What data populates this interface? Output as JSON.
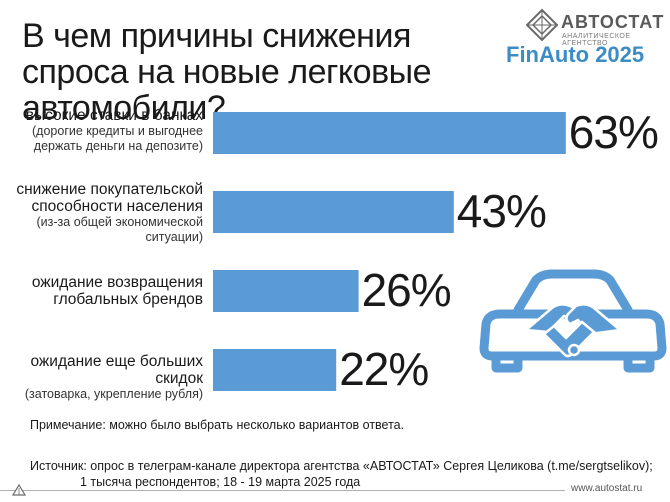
{
  "title": "В чем причины снижения спроса на новые легковые автомобили?",
  "brand": {
    "name": "АВТОСТАТ",
    "sub": "АНАЛИТИЧЕСКОЕ АГЕНТСТВО"
  },
  "event": "FinAuto 2025",
  "colors": {
    "bar": "#5b9bd5",
    "bar_edge": "#ffffff",
    "accent": "#3c8cc6",
    "car": "#5b9bd5"
  },
  "chart_data": {
    "type": "bar",
    "orientation": "horizontal",
    "value_unit": "%",
    "xlim": [
      0,
      100
    ],
    "grid": false,
    "categories": [
      {
        "label": "высокие ставки в банках",
        "note": "(дорогие кредиты и выгоднее держать деньги на депозите)"
      },
      {
        "label": "снижение покупательской способности населения",
        "note": "(из-за общей экономической ситуации)"
      },
      {
        "label": "ожидание возвращения глобальных брендов",
        "note": ""
      },
      {
        "label": "ожидание еще больших скидок",
        "note": "(затоварка, укрепление рубля)"
      }
    ],
    "values": [
      63,
      43,
      26,
      22
    ],
    "value_labels": [
      "63%",
      "43%",
      "26%",
      "22%"
    ]
  },
  "note": "Примечание: можно было выбрать несколько вариантов ответа.",
  "source": {
    "line1": "Источник: опрос в телеграм-канале директора агентства «АВТОСТАТ» Сергея Целикова (t.me/sergtselikov);",
    "line2": "1 тысяча респондентов; 18 - 19 марта 2025 года"
  },
  "website": "www.autostat.ru",
  "icons": {
    "logo": "autostat-logo-icon",
    "car": "car-handshake-icon",
    "footer": "triangle-logo-icon"
  }
}
